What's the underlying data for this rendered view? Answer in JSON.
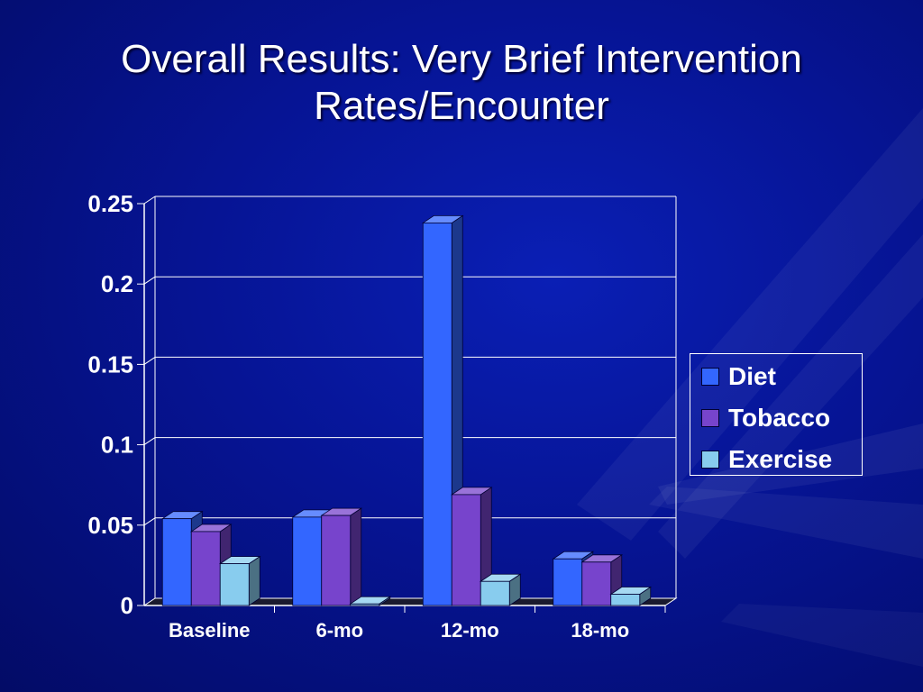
{
  "slide": {
    "title_line1": "Overall Results: Very Brief Intervention",
    "title_line2": "Rates/Encounter"
  },
  "chart_data": {
    "type": "bar",
    "title": "",
    "xlabel": "",
    "ylabel": "",
    "ylim": [
      0,
      0.25
    ],
    "yticks": [
      "0",
      "0.05",
      "0.1",
      "0.15",
      "0.2",
      "0.25"
    ],
    "grid": true,
    "legend_position": "right",
    "categories": [
      "Baseline",
      "6-mo",
      "12-mo",
      "18-mo"
    ],
    "series": [
      {
        "name": "Diet",
        "values": [
          0.054,
          0.055,
          0.238,
          0.029
        ],
        "color": "#3366ff"
      },
      {
        "name": "Tobacco",
        "values": [
          0.046,
          0.056,
          0.069,
          0.027
        ],
        "color": "#7744cc"
      },
      {
        "name": "Exercise",
        "values": [
          0.026,
          0.001,
          0.015,
          0.007
        ],
        "color": "#88ccee"
      }
    ]
  }
}
